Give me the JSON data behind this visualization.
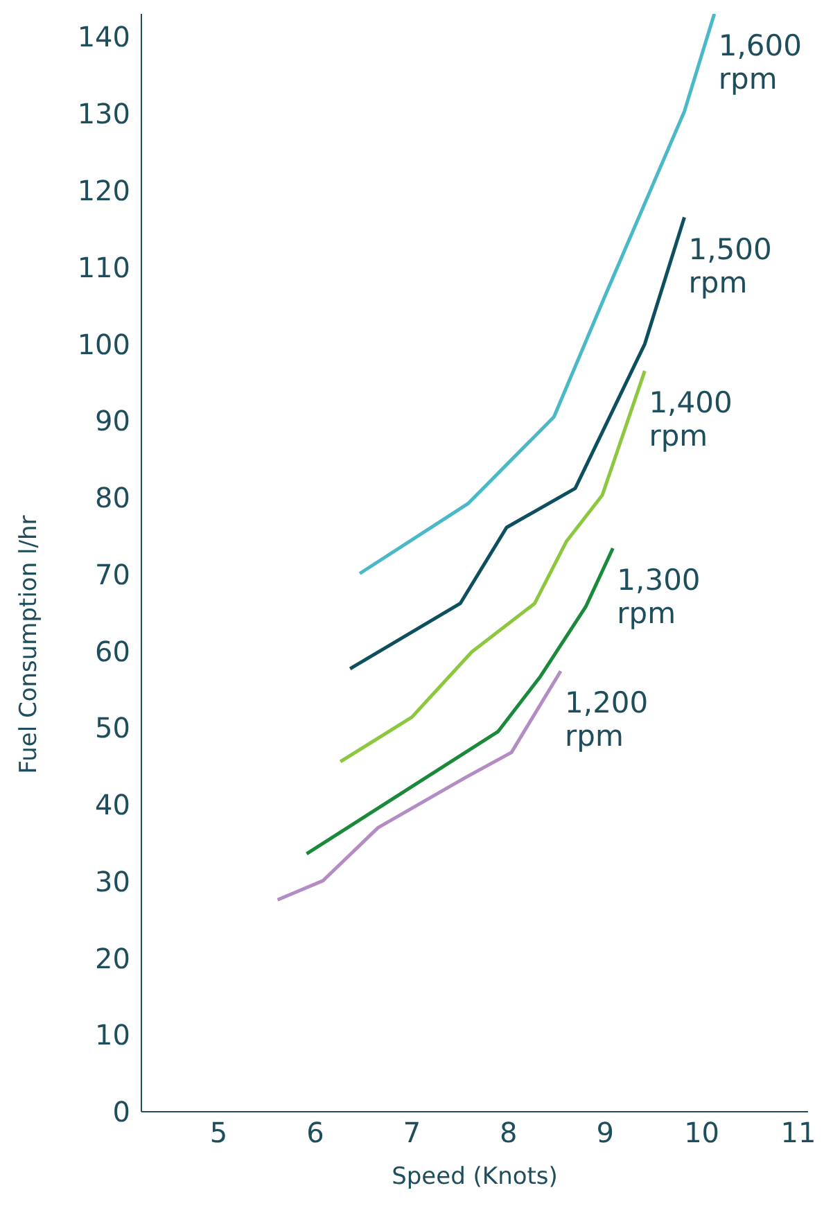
{
  "chart_data": {
    "type": "line",
    "xlabel": "Speed (Knots)",
    "ylabel": "Fuel Consumption l/hr",
    "xlim": [
      4.2,
      11.1
    ],
    "xticks": [
      5,
      6,
      7,
      8,
      9,
      10,
      11
    ],
    "ylim": [
      0,
      143
    ],
    "yticks": [
      0,
      10,
      20,
      30,
      40,
      50,
      60,
      70,
      80,
      90,
      100,
      110,
      120,
      130,
      140
    ],
    "marker": "none",
    "series": [
      {
        "name": "1,600 rpm",
        "color": "#4bb8c8",
        "x": [
          6.46,
          7.58,
          8.47,
          9.0,
          9.82,
          10.13
        ],
        "values": [
          70.1,
          79.2,
          90.5,
          106.3,
          130.3,
          143
        ]
      },
      {
        "name": "1,500 rpm",
        "color": "#0d4f5e",
        "x": [
          6.36,
          7.5,
          7.98,
          8.69,
          9.41,
          9.82
        ],
        "values": [
          57.7,
          66.2,
          76.1,
          81.2,
          100,
          116.5
        ]
      },
      {
        "name": "1,400 rpm",
        "color": "#8dc63f",
        "x": [
          6.26,
          7.0,
          7.62,
          8.27,
          8.6,
          8.97,
          9.41
        ],
        "values": [
          45.6,
          51.4,
          59.9,
          66.2,
          74.3,
          80.3,
          96.5
        ]
      },
      {
        "name": "1,300 rpm",
        "color": "#1a8a3a",
        "x": [
          5.91,
          7.89,
          8.33,
          8.8,
          9.08
        ],
        "values": [
          33.6,
          49.5,
          56.7,
          65.8,
          73.4
        ]
      },
      {
        "name": "1,200 rpm",
        "color": "#b48cc4",
        "x": [
          5.61,
          6.08,
          6.65,
          7.55,
          8.03,
          8.54
        ],
        "values": [
          27.6,
          30.1,
          37.0,
          43.5,
          46.8,
          57.4
        ]
      }
    ]
  }
}
